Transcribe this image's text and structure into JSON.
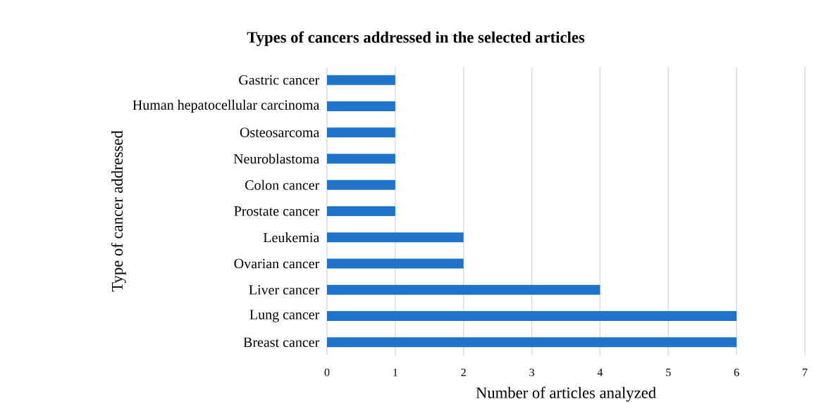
{
  "chart_data": {
    "type": "bar",
    "orientation": "horizontal",
    "title": "Types of cancers addressed in the selected articles",
    "xlabel": "Number of articles analyzed",
    "ylabel": "Type of cancer addressed",
    "categories": [
      "Gastric cancer",
      "Human hepatocellular carcinoma",
      "Osteosarcoma",
      "Neuroblastoma",
      "Colon cancer",
      "Prostate cancer",
      "Leukemia",
      "Ovarian cancer",
      "Liver cancer",
      "Lung cancer",
      "Breast cancer"
    ],
    "values": [
      1,
      1,
      1,
      1,
      1,
      1,
      2,
      2,
      4,
      6,
      6
    ],
    "color": "#1f73c8",
    "xlim": [
      0,
      7
    ],
    "xticks": [
      0,
      1,
      2,
      3,
      4,
      5,
      6,
      7
    ],
    "grid": "x"
  }
}
